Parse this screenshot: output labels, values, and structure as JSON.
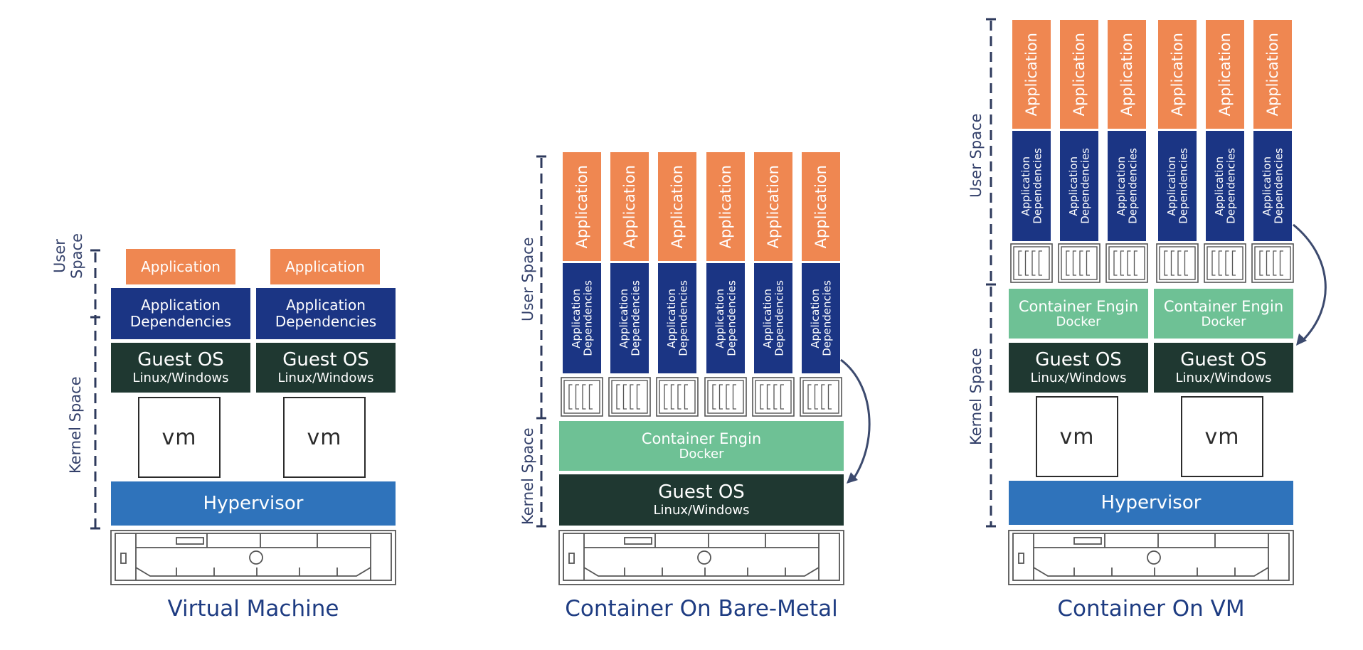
{
  "diagrams": {
    "vm": {
      "title": "Virtual Machine",
      "user_space_label_line1": "User",
      "user_space_label_line2": "Space",
      "kernel_space_label": "Kernel Space",
      "application": "Application",
      "deps_line1": "Application",
      "deps_line2": "Dependencies",
      "guest_os": "Guest OS",
      "guest_os_sub": "Linux/Windows",
      "vm_label": "vm",
      "hypervisor": "Hypervisor"
    },
    "bare_metal": {
      "title": "Container On Bare-Metal",
      "user_space_label": "User Space",
      "kernel_space_label": "Kernel Space",
      "application": "Application",
      "deps_line1": "Application",
      "deps_line2": "Dependencies",
      "engine": "Container Engin",
      "engine_sub": "Docker",
      "guest_os": "Guest OS",
      "guest_os_sub": "Linux/Windows"
    },
    "container_vm": {
      "title": "Container On VM",
      "user_space_label": "User Space",
      "kernel_space_label": "Kernel Space",
      "application": "Application",
      "deps_line1": "Application",
      "deps_line2": "Dependencies",
      "engine": "Container Engin",
      "engine_sub": "Docker",
      "guest_os": "Guest OS",
      "guest_os_sub": "Linux/Windows",
      "vm_label": "vm",
      "hypervisor": "Hypervisor"
    }
  },
  "colors": {
    "application": "#ef8751",
    "dependencies": "#1b3584",
    "guest_os": "#1f3831",
    "container_engine": "#6ec195",
    "hypervisor": "#2f73bb",
    "title": "#1e3c82"
  }
}
